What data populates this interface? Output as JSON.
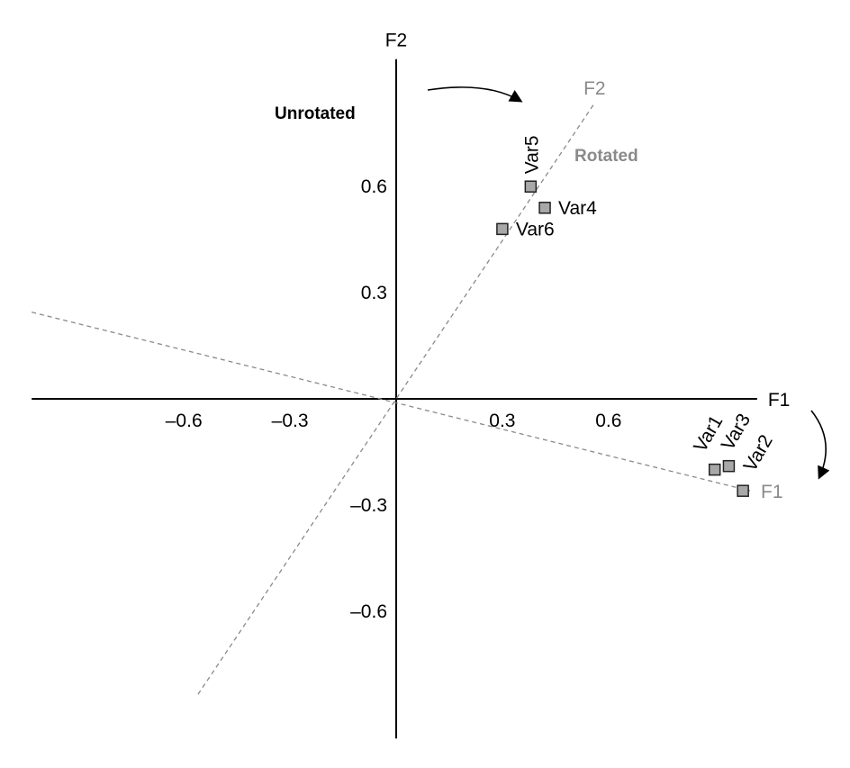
{
  "chart_data": {
    "type": "scatter",
    "x_axis": {
      "label": "F1",
      "ticks": [
        -0.6,
        -0.3,
        0.3,
        0.6
      ],
      "tick_labels": [
        "–0.6",
        "–0.3",
        "0.3",
        "0.6"
      ]
    },
    "y_axis": {
      "label": "F2",
      "ticks": [
        0.6,
        0.3,
        -0.3,
        -0.6
      ],
      "tick_labels": [
        "0.6",
        "0.3",
        "–0.3",
        "–0.6"
      ]
    },
    "xlim": [
      -1.03,
      1.02
    ],
    "ylim": [
      -0.96,
      0.96
    ],
    "points": [
      {
        "label": "Var1",
        "x": 0.9,
        "y": -0.2
      },
      {
        "label": "Var2",
        "x": 0.98,
        "y": -0.26
      },
      {
        "label": "Var3",
        "x": 0.94,
        "y": -0.19
      },
      {
        "label": "Var4",
        "x": 0.42,
        "y": 0.54
      },
      {
        "label": "Var5",
        "x": 0.38,
        "y": 0.6
      },
      {
        "label": "Var6",
        "x": 0.3,
        "y": 0.48
      }
    ],
    "rotated_axes": {
      "f1": {
        "label": "F1",
        "end": [
          1.0,
          -0.26
        ],
        "back": [
          -1.03,
          0.245
        ]
      },
      "f2": {
        "label": "F2",
        "end": [
          0.56,
          0.835
        ],
        "back": [
          -0.56,
          -0.835
        ]
      }
    },
    "annotations": {
      "unrotated": "Unrotated",
      "rotated": "Rotated"
    },
    "colors": {
      "axis": "#000000",
      "rotated": "#8a8a8a",
      "marker_fill": "#a8a8a8",
      "marker_stroke": "#222222"
    },
    "grid": false
  }
}
